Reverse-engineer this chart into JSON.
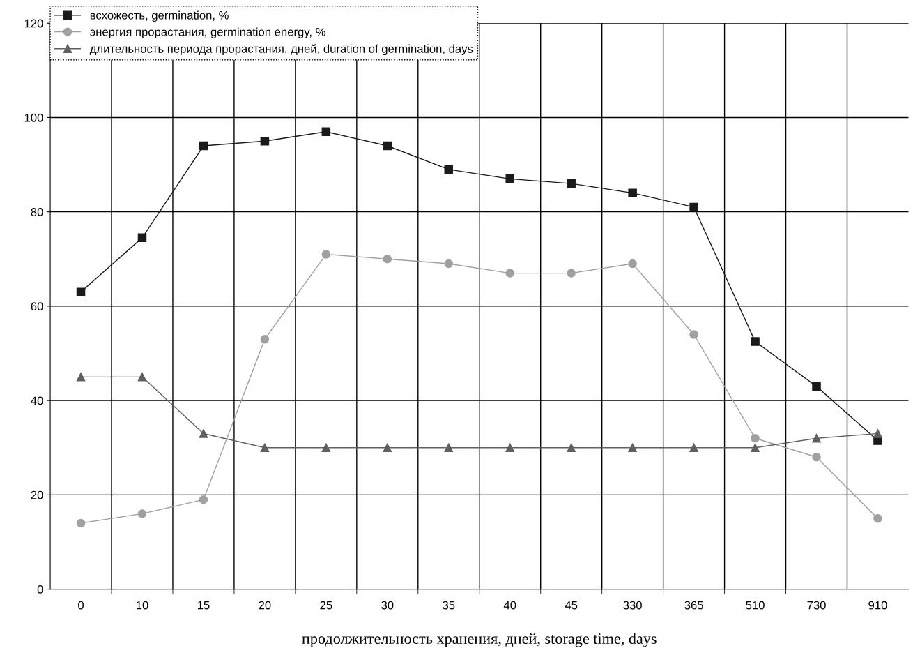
{
  "chart_data": {
    "type": "line",
    "xlabel": "продолжительность хранения, дней, storage time, days",
    "categories": [
      "0",
      "10",
      "15",
      "20",
      "25",
      "30",
      "35",
      "40",
      "45",
      "330",
      "365",
      "510",
      "730",
      "910"
    ],
    "series": [
      {
        "name": "всхожесть, germination, %",
        "color": "#1a1a1a",
        "marker": "square",
        "values": [
          63,
          74.5,
          94,
          95,
          97,
          94,
          89,
          87,
          86,
          84,
          81,
          52.5,
          43,
          31.5
        ]
      },
      {
        "name": "энергия прорастания, germination energy, %",
        "color": "#a0a0a0",
        "marker": "circle",
        "values": [
          14,
          16,
          19,
          53,
          71,
          70,
          69,
          67,
          67,
          69,
          54,
          32,
          28,
          15
        ]
      },
      {
        "name": "длительность периода прорастания, дней, duration of germination, days",
        "color": "#606060",
        "marker": "triangle",
        "values": [
          45,
          45,
          33,
          30,
          30,
          30,
          30,
          30,
          30,
          30,
          30,
          30,
          32,
          33
        ]
      }
    ],
    "ylim": [
      0,
      120
    ],
    "yticks": [
      0,
      20,
      40,
      60,
      80,
      100,
      120
    ],
    "grid": true,
    "legend": "top left",
    "line_style": "solid"
  }
}
